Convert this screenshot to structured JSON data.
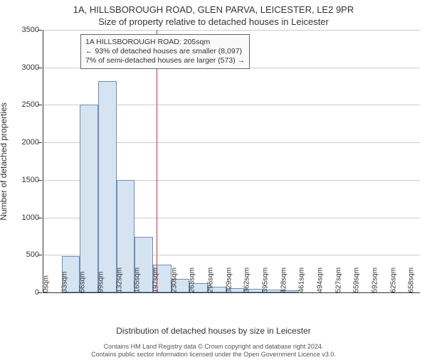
{
  "titles": {
    "line1": "1A, HILLSBOROUGH ROAD, GLEN PARVA, LEICESTER, LE2 9PR",
    "line2": "Size of property relative to detached houses in Leicester"
  },
  "chart": {
    "type": "histogram",
    "ylim": [
      0,
      3500
    ],
    "ytick_step": 500,
    "ylabel": "Number of detached properties",
    "xlabel": "Distribution of detached houses by size in Leicester",
    "background_color": "#ffffff",
    "grid_color": "#cccccc",
    "axis_color": "#333333",
    "bar_fill": "#d6e4f2",
    "bar_border": "#6b8fb3",
    "refline_color": "#cc3333",
    "refline_x": 205,
    "xmax": 680,
    "bin_width": 33,
    "tick_fontsize": 11,
    "label_fontsize": 12,
    "title_fontsize": 13,
    "categories": [
      "0sqm",
      "33sqm",
      "66sqm",
      "99sqm",
      "132sqm",
      "165sqm",
      "197sqm",
      "230sqm",
      "263sqm",
      "296sqm",
      "329sqm",
      "362sqm",
      "395sqm",
      "428sqm",
      "461sqm",
      "494sqm",
      "527sqm",
      "559sqm",
      "592sqm",
      "625sqm",
      "658sqm"
    ],
    "values": [
      0,
      480,
      2500,
      2820,
      1500,
      740,
      370,
      180,
      120,
      80,
      60,
      50,
      40,
      30,
      0,
      0,
      0,
      0,
      0,
      0,
      0
    ]
  },
  "infobox": {
    "line1": "1A HILLSBOROUGH ROAD: 205sqm",
    "line2": "← 93% of detached houses are smaller (8,097)",
    "line3": "7% of semi-detached houses are larger (573) →",
    "border_color": "#666666",
    "background_color": "#fafafa",
    "fontsize": 10.5
  },
  "footer": {
    "line1": "Contains HM Land Registry data © Crown copyright and database right 2024.",
    "line2": "Contains public sector information licensed under the Open Government Licence v3.0."
  }
}
